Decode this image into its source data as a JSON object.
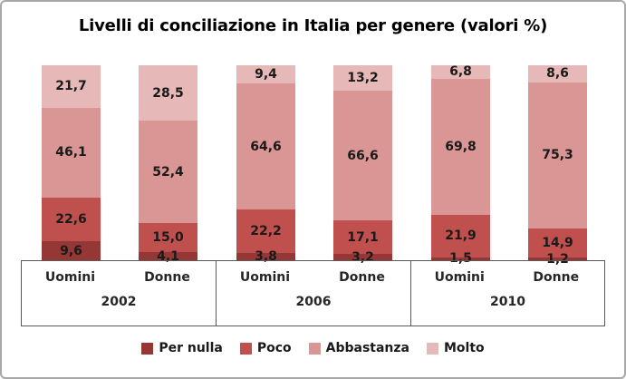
{
  "style_colors": {
    "frame_border": "#A8A8A8",
    "axis_line": "#595959",
    "label_text": "#1A1A1A",
    "title_text": "#000000"
  },
  "chart_data": {
    "type": "bar",
    "stacked": true,
    "title": "Livelli di conciliazione in Italia per genere (valori %)",
    "unit": "valori %",
    "ylim": [
      0,
      100
    ],
    "grid": false,
    "legend_position": "bottom",
    "groups": [
      {
        "label": "2002",
        "categories": [
          "Uomini",
          "Donne"
        ]
      },
      {
        "label": "2006",
        "categories": [
          "Uomini",
          "Donne"
        ]
      },
      {
        "label": "2010",
        "categories": [
          "Uomini",
          "Donne"
        ]
      }
    ],
    "categories": [
      "Uomini 2002",
      "Donne 2002",
      "Uomini 2006",
      "Donne 2006",
      "Uomini 2010",
      "Donne 2010"
    ],
    "series": [
      {
        "name": "Per nulla",
        "color": "#953735",
        "values": [
          9.6,
          4.1,
          3.8,
          3.2,
          1.5,
          1.2
        ],
        "labels": [
          "9,6",
          "4,1",
          "3,8",
          "3,2",
          "1,5",
          "1,2"
        ]
      },
      {
        "name": "Poco",
        "color": "#C0504D",
        "values": [
          22.6,
          15.0,
          22.2,
          17.1,
          21.9,
          14.9
        ],
        "labels": [
          "22,6",
          "15,0",
          "22,2",
          "17,1",
          "21,9",
          "14,9"
        ]
      },
      {
        "name": "Abbastanza",
        "color": "#D99694",
        "values": [
          46.1,
          52.4,
          64.6,
          66.6,
          69.8,
          75.3
        ],
        "labels": [
          "46,1",
          "52,4",
          "64,6",
          "66,6",
          "69,8",
          "75,3"
        ]
      },
      {
        "name": "Molto",
        "color": "#E6B9B8",
        "values": [
          21.7,
          28.5,
          9.4,
          13.2,
          6.8,
          8.6
        ],
        "labels": [
          "21,7",
          "28,5",
          "9,4",
          "13,2",
          "6,8",
          "8,6"
        ]
      }
    ]
  }
}
